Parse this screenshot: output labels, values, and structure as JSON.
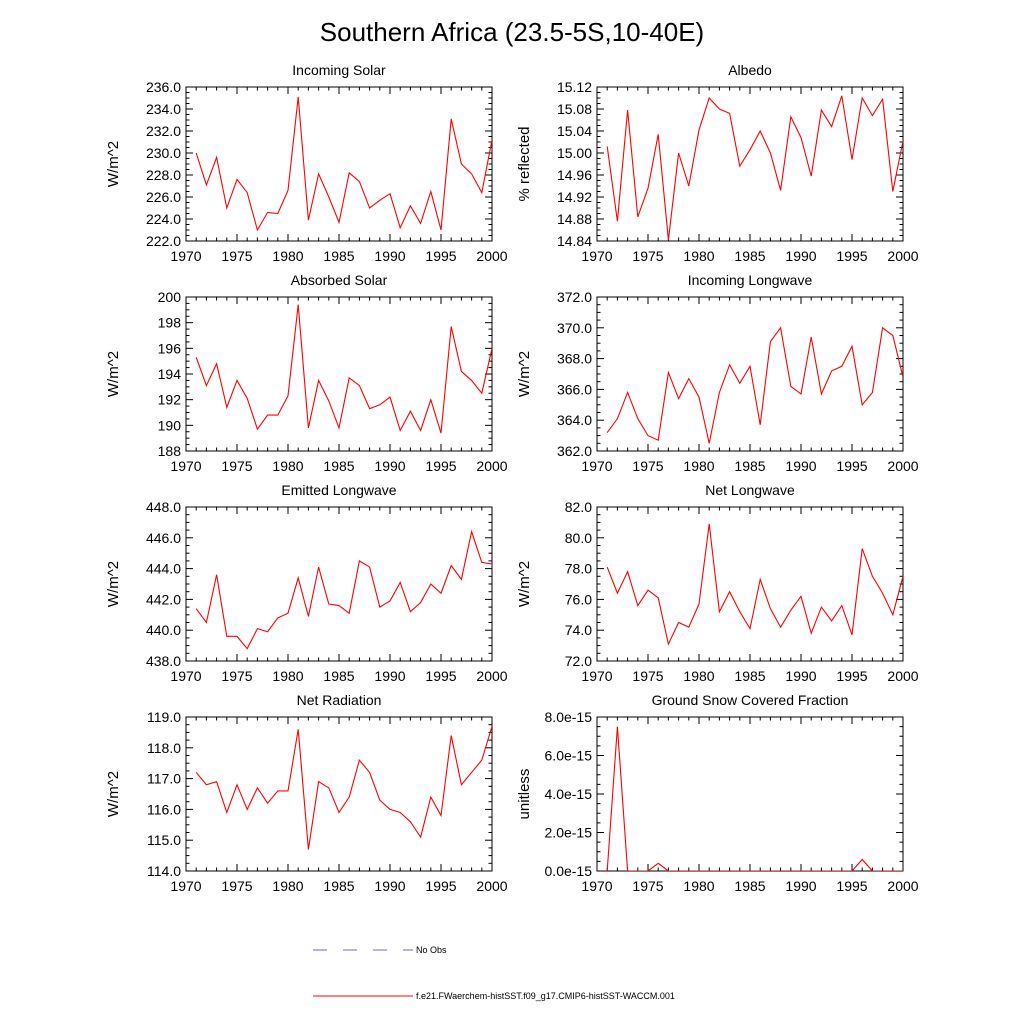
{
  "figure": {
    "title": "Southern Africa (23.5-5S,10-40E)"
  },
  "legend": {
    "entries": [
      {
        "label": "No Obs",
        "color": "#6a6acf",
        "style": "dashed"
      },
      {
        "label": "f.e21.FWaerchem-histSST.f09_g17.CMIP6-histSST-WACCM.001",
        "color": "#ff0000",
        "style": "solid"
      }
    ]
  },
  "colors": {
    "series": "#ff0000",
    "axis": "#000000"
  },
  "chart_data": [
    {
      "type": "line",
      "title": "Incoming Solar",
      "xlabel": "",
      "ylabel": "W/m^2",
      "xlim": [
        1970,
        2000
      ],
      "ylim": [
        222.0,
        236.0
      ],
      "xticks": [
        1970,
        1975,
        1980,
        1985,
        1990,
        1995,
        2000
      ],
      "xtick_labels": [
        "1970",
        "1975",
        "1980",
        "1985",
        "1990",
        "1995",
        "2000"
      ],
      "yticks": [
        222,
        224,
        226,
        228,
        230,
        232,
        234,
        236
      ],
      "ytick_labels": [
        "222.0",
        "224.0",
        "226.0",
        "228.0",
        "230.0",
        "232.0",
        "234.0",
        "236.0"
      ],
      "grid": false,
      "series": [
        {
          "x": [
            1971,
            1972,
            1973,
            1974,
            1975,
            1976,
            1977,
            1978,
            1979,
            1980,
            1981,
            1982,
            1983,
            1984,
            1985,
            1986,
            1987,
            1988,
            1989,
            1990,
            1991,
            1992,
            1993,
            1994,
            1995,
            1996,
            1997,
            1998,
            1999,
            2000
          ],
          "y": [
            230.0,
            227.1,
            229.6,
            225.0,
            227.6,
            226.4,
            223.0,
            224.6,
            224.5,
            226.6,
            235.1,
            223.9,
            228.1,
            226.0,
            223.7,
            228.2,
            227.4,
            225.0,
            225.7,
            226.3,
            223.2,
            225.2,
            223.6,
            226.5,
            223.0,
            233.1,
            229.0,
            228.1,
            226.4,
            231.2
          ]
        }
      ]
    },
    {
      "type": "line",
      "title": "Albedo",
      "xlabel": "",
      "ylabel": "% reflected",
      "xlim": [
        1970,
        2000
      ],
      "ylim": [
        14.84,
        15.12
      ],
      "xticks": [
        1970,
        1975,
        1980,
        1985,
        1990,
        1995,
        2000
      ],
      "xtick_labels": [
        "1970",
        "1975",
        "1980",
        "1985",
        "1990",
        "1995",
        "2000"
      ],
      "yticks": [
        14.84,
        14.88,
        14.92,
        14.96,
        15.0,
        15.04,
        15.08,
        15.12
      ],
      "ytick_labels": [
        "14.84",
        "14.88",
        "14.92",
        "14.96",
        "15.00",
        "15.04",
        "15.08",
        "15.12"
      ],
      "grid": false,
      "series": [
        {
          "x": [
            1971,
            1972,
            1973,
            1974,
            1975,
            1976,
            1977,
            1978,
            1979,
            1980,
            1981,
            1982,
            1983,
            1984,
            1985,
            1986,
            1987,
            1988,
            1989,
            1990,
            1991,
            1992,
            1993,
            1994,
            1995,
            1996,
            1997,
            1998,
            1999,
            2000
          ],
          "y": [
            15.012,
            14.876,
            15.078,
            14.884,
            14.936,
            15.034,
            14.842,
            15.0,
            14.94,
            15.042,
            15.1,
            15.08,
            15.072,
            14.976,
            15.006,
            15.04,
            15.0,
            14.932,
            15.066,
            15.028,
            14.958,
            15.078,
            15.048,
            15.104,
            14.988,
            15.1,
            15.068,
            15.098,
            14.93,
            15.022
          ]
        }
      ]
    },
    {
      "type": "line",
      "title": "Absorbed Solar",
      "xlabel": "",
      "ylabel": "W/m^2",
      "xlim": [
        1970,
        2000
      ],
      "ylim": [
        188,
        200
      ],
      "xticks": [
        1970,
        1975,
        1980,
        1985,
        1990,
        1995,
        2000
      ],
      "xtick_labels": [
        "1970",
        "1975",
        "1980",
        "1985",
        "1990",
        "1995",
        "2000"
      ],
      "yticks": [
        188,
        190,
        192,
        194,
        196,
        198,
        200
      ],
      "ytick_labels": [
        "188",
        "190",
        "192",
        "194",
        "196",
        "198",
        "200"
      ],
      "grid": false,
      "series": [
        {
          "x": [
            1971,
            1972,
            1973,
            1974,
            1975,
            1976,
            1977,
            1978,
            1979,
            1980,
            1981,
            1982,
            1983,
            1984,
            1985,
            1986,
            1987,
            1988,
            1989,
            1990,
            1991,
            1992,
            1993,
            1994,
            1995,
            1996,
            1997,
            1998,
            1999,
            2000
          ],
          "y": [
            195.3,
            193.1,
            194.8,
            191.4,
            193.5,
            192.1,
            189.7,
            190.8,
            190.8,
            192.3,
            199.4,
            189.8,
            193.5,
            191.9,
            189.8,
            193.7,
            193.1,
            191.3,
            191.6,
            192.2,
            189.6,
            191.1,
            189.6,
            192.0,
            189.4,
            197.7,
            194.2,
            193.5,
            192.5,
            196.0
          ]
        }
      ]
    },
    {
      "type": "line",
      "title": "Incoming Longwave",
      "xlabel": "",
      "ylabel": "W/m^2",
      "xlim": [
        1970,
        2000
      ],
      "ylim": [
        362.0,
        372.0
      ],
      "xticks": [
        1970,
        1975,
        1980,
        1985,
        1990,
        1995,
        2000
      ],
      "xtick_labels": [
        "1970",
        "1975",
        "1980",
        "1985",
        "1990",
        "1995",
        "2000"
      ],
      "yticks": [
        362,
        364,
        366,
        368,
        370,
        372
      ],
      "ytick_labels": [
        "362.0",
        "364.0",
        "366.0",
        "368.0",
        "370.0",
        "372.0"
      ],
      "grid": false,
      "series": [
        {
          "x": [
            1971,
            1972,
            1973,
            1974,
            1975,
            1976,
            1977,
            1978,
            1979,
            1980,
            1981,
            1982,
            1983,
            1984,
            1985,
            1986,
            1987,
            1988,
            1989,
            1990,
            1991,
            1992,
            1993,
            1994,
            1995,
            1996,
            1997,
            1998,
            1999,
            2000
          ],
          "y": [
            363.2,
            364.1,
            365.8,
            364.1,
            363.0,
            362.7,
            367.1,
            365.4,
            366.7,
            365.5,
            362.5,
            365.8,
            367.6,
            366.4,
            367.5,
            363.7,
            369.1,
            370.0,
            366.2,
            365.7,
            369.4,
            365.7,
            367.2,
            367.5,
            368.8,
            365.0,
            365.8,
            370.0,
            369.5,
            366.8
          ]
        }
      ]
    },
    {
      "type": "line",
      "title": "Emitted Longwave",
      "xlabel": "",
      "ylabel": "W/m^2",
      "xlim": [
        1970,
        2000
      ],
      "ylim": [
        438.0,
        448.0
      ],
      "xticks": [
        1970,
        1975,
        1980,
        1985,
        1990,
        1995,
        2000
      ],
      "xtick_labels": [
        "1970",
        "1975",
        "1980",
        "1985",
        "1990",
        "1995",
        "2000"
      ],
      "yticks": [
        438,
        440,
        442,
        444,
        446,
        448
      ],
      "ytick_labels": [
        "438.0",
        "440.0",
        "442.0",
        "444.0",
        "446.0",
        "448.0"
      ],
      "grid": false,
      "series": [
        {
          "x": [
            1971,
            1972,
            1973,
            1974,
            1975,
            1976,
            1977,
            1978,
            1979,
            1980,
            1981,
            1982,
            1983,
            1984,
            1985,
            1986,
            1987,
            1988,
            1989,
            1990,
            1991,
            1992,
            1993,
            1994,
            1995,
            1996,
            1997,
            1998,
            1999,
            2000
          ],
          "y": [
            441.4,
            440.5,
            443.6,
            439.6,
            439.6,
            438.8,
            440.1,
            439.9,
            440.8,
            441.1,
            443.4,
            440.9,
            444.1,
            441.7,
            441.6,
            441.1,
            444.5,
            444.1,
            441.5,
            441.9,
            443.1,
            441.2,
            441.8,
            443.0,
            442.4,
            444.2,
            443.3,
            446.4,
            444.4,
            444.3
          ]
        }
      ]
    },
    {
      "type": "line",
      "title": "Net Longwave",
      "xlabel": "",
      "ylabel": "W/m^2",
      "xlim": [
        1970,
        2000
      ],
      "ylim": [
        72.0,
        82.0
      ],
      "xticks": [
        1970,
        1975,
        1980,
        1985,
        1990,
        1995,
        2000
      ],
      "xtick_labels": [
        "1970",
        "1975",
        "1980",
        "1985",
        "1990",
        "1995",
        "2000"
      ],
      "yticks": [
        72,
        74,
        76,
        78,
        80,
        82
      ],
      "ytick_labels": [
        "72.0",
        "74.0",
        "76.0",
        "78.0",
        "80.0",
        "82.0"
      ],
      "grid": false,
      "series": [
        {
          "x": [
            1971,
            1972,
            1973,
            1974,
            1975,
            1976,
            1977,
            1978,
            1979,
            1980,
            1981,
            1982,
            1983,
            1984,
            1985,
            1986,
            1987,
            1988,
            1989,
            1990,
            1991,
            1992,
            1993,
            1994,
            1995,
            1996,
            1997,
            1998,
            1999,
            2000
          ],
          "y": [
            78.1,
            76.4,
            77.8,
            75.6,
            76.6,
            76.1,
            73.1,
            74.5,
            74.2,
            75.7,
            80.9,
            75.2,
            76.5,
            75.2,
            74.1,
            77.3,
            75.4,
            74.2,
            75.3,
            76.2,
            73.8,
            75.5,
            74.6,
            75.6,
            73.7,
            79.3,
            77.5,
            76.4,
            75.0,
            77.5
          ]
        }
      ]
    },
    {
      "type": "line",
      "title": "Net Radiation",
      "xlabel": "",
      "ylabel": "W/m^2",
      "xlim": [
        1970,
        2000
      ],
      "ylim": [
        114.0,
        119.0
      ],
      "xticks": [
        1970,
        1975,
        1980,
        1985,
        1990,
        1995,
        2000
      ],
      "xtick_labels": [
        "1970",
        "1975",
        "1980",
        "1985",
        "1990",
        "1995",
        "2000"
      ],
      "yticks": [
        114,
        115,
        116,
        117,
        118,
        119
      ],
      "ytick_labels": [
        "114.0",
        "115.0",
        "116.0",
        "117.0",
        "118.0",
        "119.0"
      ],
      "grid": false,
      "series": [
        {
          "x": [
            1971,
            1972,
            1973,
            1974,
            1975,
            1976,
            1977,
            1978,
            1979,
            1980,
            1981,
            1982,
            1983,
            1984,
            1985,
            1986,
            1987,
            1988,
            1989,
            1990,
            1991,
            1992,
            1993,
            1994,
            1995,
            1996,
            1997,
            1998,
            1999,
            2000
          ],
          "y": [
            117.2,
            116.8,
            116.9,
            115.9,
            116.8,
            116.0,
            116.7,
            116.2,
            116.6,
            116.6,
            118.6,
            114.7,
            116.9,
            116.7,
            115.9,
            116.4,
            117.6,
            117.2,
            116.3,
            116.0,
            115.9,
            115.6,
            115.1,
            116.4,
            115.8,
            118.4,
            116.8,
            117.2,
            117.6,
            118.7
          ]
        }
      ]
    },
    {
      "type": "line",
      "title": "Ground Snow Covered Fraction",
      "xlabel": "",
      "ylabel": "unitless",
      "xlim": [
        1970,
        2000
      ],
      "ylim": [
        0,
        8e-15
      ],
      "xticks": [
        1970,
        1975,
        1980,
        1985,
        1990,
        1995,
        2000
      ],
      "xtick_labels": [
        "1970",
        "1975",
        "1980",
        "1985",
        "1990",
        "1995",
        "2000"
      ],
      "yticks": [
        0,
        2e-15,
        4e-15,
        6e-15,
        8e-15
      ],
      "ytick_labels": [
        "0.0e-15",
        "2.0e-15",
        "4.0e-15",
        "6.0e-15",
        "8.0e-15"
      ],
      "grid": false,
      "series": [
        {
          "x": [
            1971,
            1972,
            1973,
            1974,
            1975,
            1976,
            1977,
            1978,
            1979,
            1980,
            1981,
            1982,
            1983,
            1984,
            1985,
            1986,
            1987,
            1988,
            1989,
            1990,
            1991,
            1992,
            1993,
            1994,
            1995,
            1996,
            1997,
            1998,
            1999,
            2000
          ],
          "y": [
            0,
            7.5e-15,
            0,
            0,
            0,
            4e-16,
            0,
            0,
            0,
            0,
            0,
            0,
            0,
            0,
            0,
            0,
            0,
            0,
            0,
            0,
            0,
            0,
            0,
            0,
            0,
            6e-16,
            0,
            0,
            0,
            0
          ]
        }
      ]
    }
  ]
}
